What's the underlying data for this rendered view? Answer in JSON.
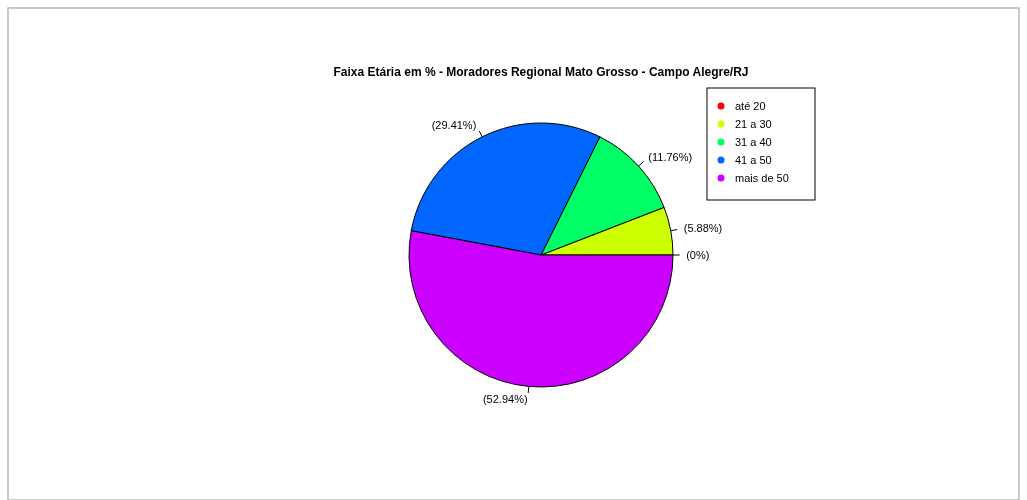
{
  "chart_data": {
    "type": "pie",
    "title": "Faixa Etária em % - Moradores Regional Mato Grosso - Campo Alegre/RJ",
    "categories": [
      "até 20",
      "21 a 30",
      "31 a 40",
      "41 a 50",
      "mais de 50"
    ],
    "values": [
      0,
      5.88,
      11.76,
      29.41,
      52.94
    ],
    "colors": [
      "#ff0000",
      "#ccff00",
      "#00ff66",
      "#0066ff",
      "#cc00ff"
    ],
    "value_labels": [
      "(0%)",
      "(5.88%)",
      "(11.76%)",
      "(29.41%)",
      "(52.94%)"
    ],
    "legend": "right",
    "marker": "circle"
  }
}
